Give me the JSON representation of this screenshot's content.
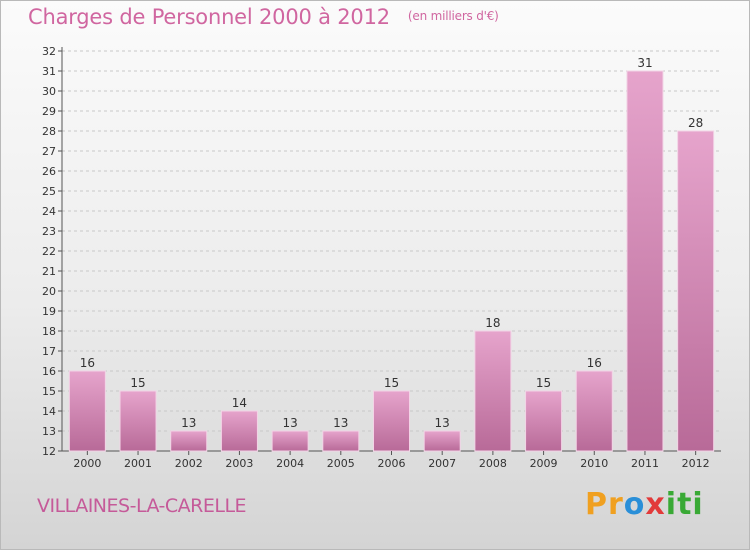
{
  "title": "Charges de Personnel 2000 à 2012",
  "unit": "(en milliers d'€)",
  "commune": "VILLAINES-LA-CARELLE",
  "logo": {
    "letters": [
      "P",
      "r",
      "o",
      "x",
      "i",
      "t",
      "i"
    ],
    "colors": [
      "#f0a020",
      "#f0a020",
      "#2a8fd8",
      "#e23a3a",
      "#39a935",
      "#39a935",
      "#39a935"
    ]
  },
  "colors": {
    "bar": "#d488b6",
    "title": "#d066a0"
  },
  "chart_data": {
    "type": "bar",
    "title": "Charges de Personnel 2000 à 2012",
    "subtitle": "(en milliers d'€)",
    "xlabel": "",
    "ylabel": "",
    "categories": [
      "2000",
      "2001",
      "2002",
      "2003",
      "2004",
      "2005",
      "2006",
      "2007",
      "2008",
      "2009",
      "2010",
      "2011",
      "2012"
    ],
    "values": [
      16,
      15,
      13,
      14,
      13,
      13,
      15,
      13,
      18,
      15,
      16,
      31,
      28
    ],
    "ylim": [
      12,
      32
    ],
    "yticks": [
      12,
      13,
      14,
      15,
      16,
      17,
      18,
      19,
      20,
      21,
      22,
      23,
      24,
      25,
      26,
      27,
      28,
      29,
      30,
      31,
      32
    ],
    "grid": "horizontal dashed"
  }
}
